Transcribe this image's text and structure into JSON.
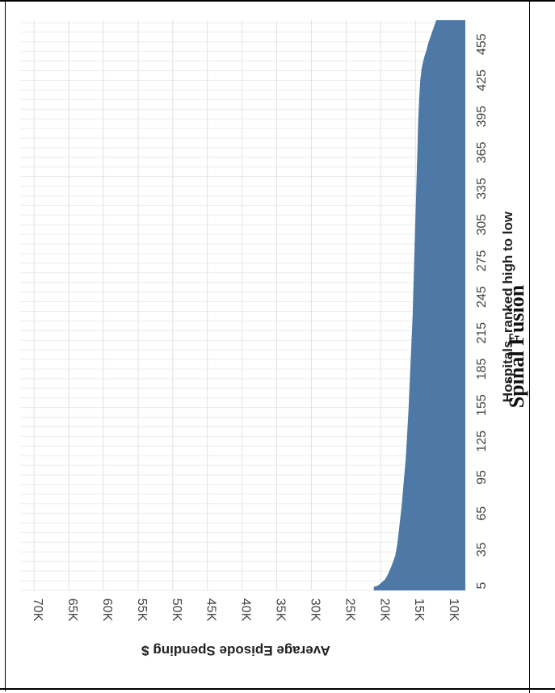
{
  "caption": "Spinal Fusion",
  "chart_data": {
    "type": "area",
    "title": "",
    "xlabel": "Hospitals, ranked high to low",
    "ylabel": "Average Episode Spending $",
    "x_ticks": [
      5,
      35,
      65,
      95,
      125,
      155,
      185,
      215,
      245,
      275,
      305,
      335,
      365,
      395,
      425,
      455
    ],
    "y_ticks": [
      {
        "value": 10000,
        "label": "10K"
      },
      {
        "value": 15000,
        "label": "15K"
      },
      {
        "value": 20000,
        "label": "20K"
      },
      {
        "value": 25000,
        "label": "25K"
      },
      {
        "value": 30000,
        "label": "30K"
      },
      {
        "value": 35000,
        "label": "35K"
      },
      {
        "value": 40000,
        "label": "40K"
      },
      {
        "value": 45000,
        "label": "45K"
      },
      {
        "value": 50000,
        "label": "50K"
      },
      {
        "value": 55000,
        "label": "55K"
      },
      {
        "value": 60000,
        "label": "60K"
      },
      {
        "value": 65000,
        "label": "65K"
      },
      {
        "value": 70000,
        "label": "70K"
      }
    ],
    "xlim": [
      1,
      475
    ],
    "ylim": [
      7800,
      72000
    ],
    "grid": true,
    "color": "#4e79a7",
    "series": [
      {
        "x": [
          1,
          4,
          5,
          8,
          10,
          14,
          18,
          22,
          30,
          40,
          50,
          60,
          70,
          80,
          90,
          100,
          110,
          130,
          150,
          170,
          190,
          210,
          230,
          250,
          270,
          290,
          310,
          330,
          350,
          370,
          390,
          410,
          425,
          430,
          435,
          440,
          445,
          450,
          455,
          460,
          465,
          470,
          475
        ],
        "y": [
          21000,
          21000,
          20400,
          19800,
          19400,
          19000,
          18700,
          18400,
          17900,
          17600,
          17400,
          17200,
          17000,
          16850,
          16700,
          16550,
          16400,
          16200,
          16000,
          15850,
          15700,
          15550,
          15400,
          15300,
          15200,
          15100,
          15000,
          14900,
          14800,
          14700,
          14600,
          14450,
          14300,
          14200,
          14100,
          13900,
          13700,
          13400,
          13200,
          12900,
          12600,
          12300,
          12000
        ]
      }
    ]
  }
}
